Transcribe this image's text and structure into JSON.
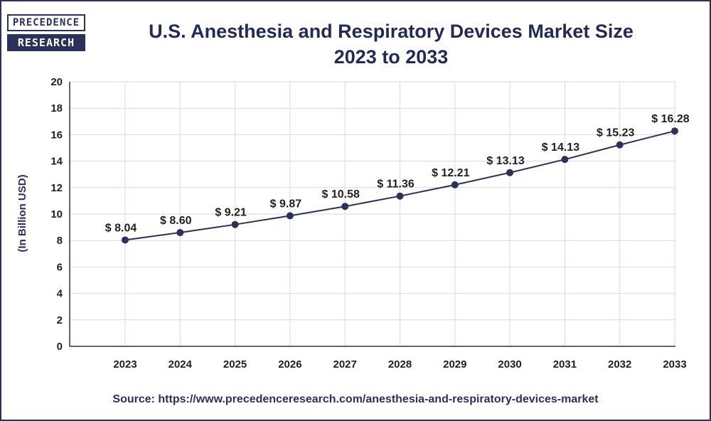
{
  "logo": {
    "line1": "PRECEDENCE",
    "line2": "RESEARCH"
  },
  "source_text": "Source: https://www.precedenceresearch.com/anesthesia-and-respiratory-devices-market",
  "colors": {
    "line": "#2b3158",
    "marker": "#2b3158",
    "grid": "#d9d9d9",
    "axis": "#333333"
  },
  "chart_data": {
    "type": "line",
    "title_line1": "U.S. Anesthesia and Respiratory Devices Market Size",
    "title_line2": "2023 to 2033",
    "xlabel": "",
    "ylabel": "(In Billion USD)",
    "categories": [
      "2023",
      "2024",
      "2025",
      "2026",
      "2027",
      "2028",
      "2029",
      "2030",
      "2031",
      "2032",
      "2033"
    ],
    "values": [
      8.04,
      8.6,
      9.21,
      9.87,
      10.58,
      11.36,
      12.21,
      13.13,
      14.13,
      15.23,
      16.28
    ],
    "data_labels": [
      "$ 8.04",
      "$ 8.60",
      "$ 9.21",
      "$ 9.87",
      "$ 10.58",
      "$ 11.36",
      "$ 12.21",
      "$ 13.13",
      "$ 14.13",
      "$ 15.23",
      "$ 16.28"
    ],
    "ylim": [
      0,
      20
    ],
    "yticks": [
      "0",
      "2",
      "4",
      "6",
      "8",
      "10",
      "12",
      "14",
      "16",
      "18",
      "20"
    ],
    "grid": true
  }
}
